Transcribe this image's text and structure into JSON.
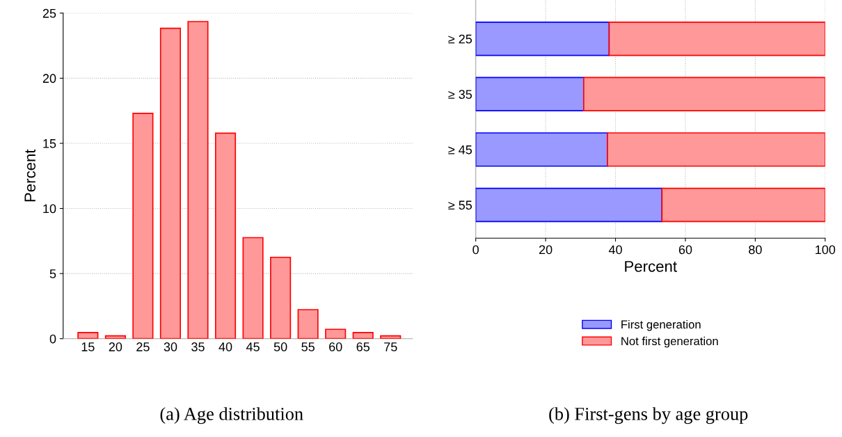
{
  "chart_data": [
    {
      "type": "bar",
      "categories": [
        "15",
        "20",
        "25",
        "30",
        "35",
        "40",
        "45",
        "50",
        "55",
        "60",
        "65",
        "75"
      ],
      "ylabel": "Percent",
      "ylim": [
        0,
        25
      ],
      "yticks": [
        0,
        5,
        10,
        15,
        20,
        25
      ],
      "grid": "y",
      "series": [
        {
          "color": "#ff9999",
          "values": [
            0.47,
            0.22,
            17.3,
            23.84,
            24.35,
            15.78,
            7.76,
            6.25,
            2.23,
            0.72,
            0.47,
            0.22
          ]
        }
      ],
      "annotations": [
        "(a) Age distribution"
      ]
    },
    {
      "type": "bar",
      "orientation": "horizontal",
      "stacked": true,
      "categories": [
        "≥ 25",
        "≥ 35",
        "≥ 45",
        "≥ 55"
      ],
      "xlabel": "Percent",
      "xlim": [
        0,
        100
      ],
      "xticks": [
        0,
        20,
        40,
        60,
        80,
        100
      ],
      "grid": "x",
      "legend": "bottom",
      "series": [
        {
          "name": "First generation",
          "color": "#9999ff",
          "values": [
            38.2,
            30.9,
            37.7,
            53.3
          ]
        },
        {
          "name": "Not first generation",
          "color": "#ff9999",
          "values": [
            61.8,
            69.1,
            62.3,
            46.7
          ]
        }
      ],
      "annotations": [
        "(b) First-gens by age group"
      ]
    }
  ]
}
